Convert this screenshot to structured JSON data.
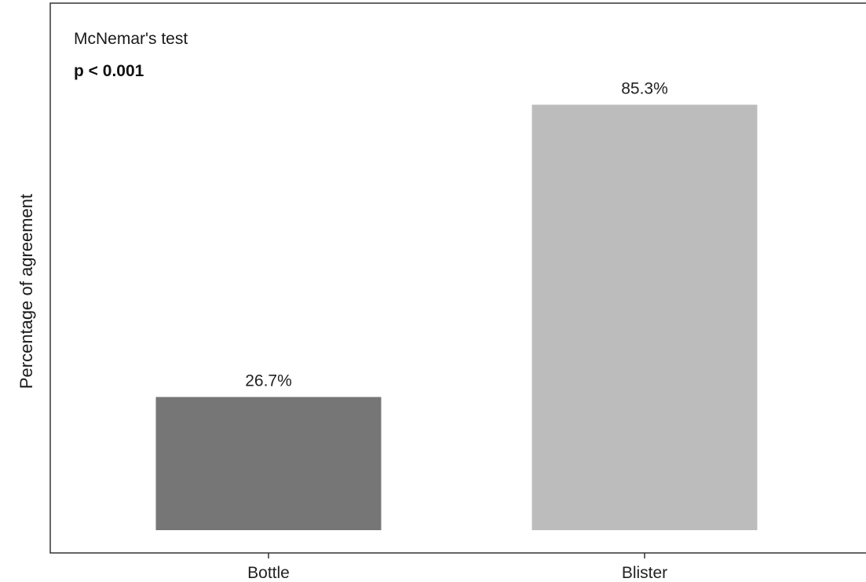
{
  "chart_data": {
    "type": "bar",
    "categories": [
      "Bottle",
      "Blister"
    ],
    "values": [
      26.7,
      85.3
    ],
    "value_labels": [
      "26.7%",
      "85.3%"
    ],
    "colors": [
      "#767676",
      "#bdbcbd"
    ],
    "title": "",
    "xlabel": "",
    "ylabel": "Percentage of agreement",
    "ylim": [
      0,
      100
    ],
    "grid": false,
    "annotations": {
      "test_name": "McNemar's test",
      "p_value": "p < 0.001"
    }
  }
}
